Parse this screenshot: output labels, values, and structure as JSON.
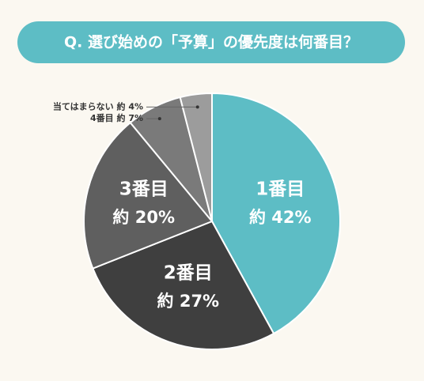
{
  "chart_data": {
    "type": "pie",
    "title": "Q. 選び始めの「予算」の優先度は何番目？",
    "categories": [
      "1番目",
      "2番目",
      "3番目",
      "4番目",
      "当てはまらない"
    ],
    "values": [
      42,
      27,
      20,
      7,
      4
    ],
    "value_labels": [
      "約 42%",
      "約 27%",
      "約 20%",
      "約 7%",
      "約 4%"
    ],
    "colors": [
      "#5dbdc5",
      "#3f3f3f",
      "#5f5f5f",
      "#7a7a7a",
      "#9c9c9c"
    ]
  }
}
